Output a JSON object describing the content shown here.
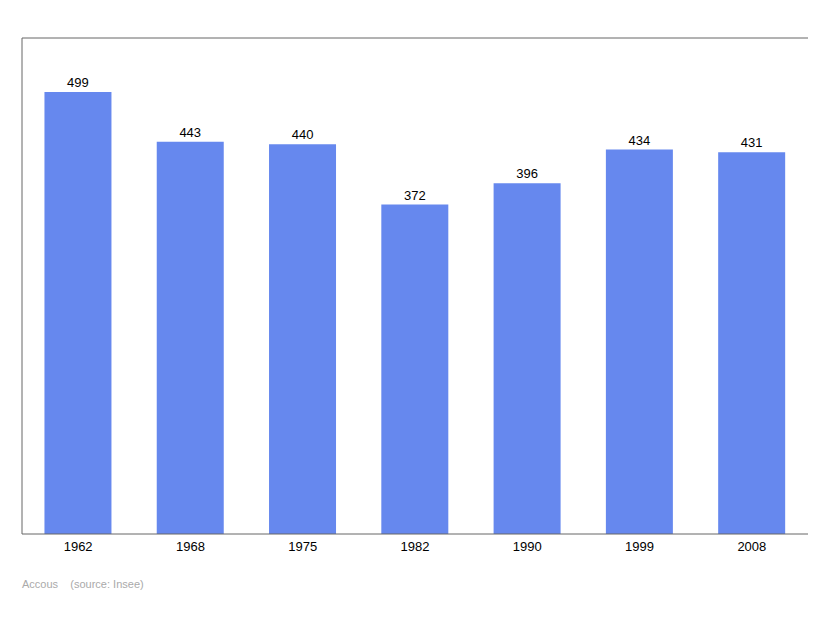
{
  "chart_data": {
    "type": "bar",
    "categories": [
      "1962",
      "1968",
      "1975",
      "1982",
      "1990",
      "1999",
      "2008"
    ],
    "values": [
      499,
      443,
      440,
      372,
      396,
      434,
      431
    ],
    "color": "#6688ee",
    "ylim": [
      0,
      560
    ],
    "data_labels": true,
    "tick_labels": "x",
    "annotations": [
      "Accous    (source: Insee)"
    ]
  }
}
